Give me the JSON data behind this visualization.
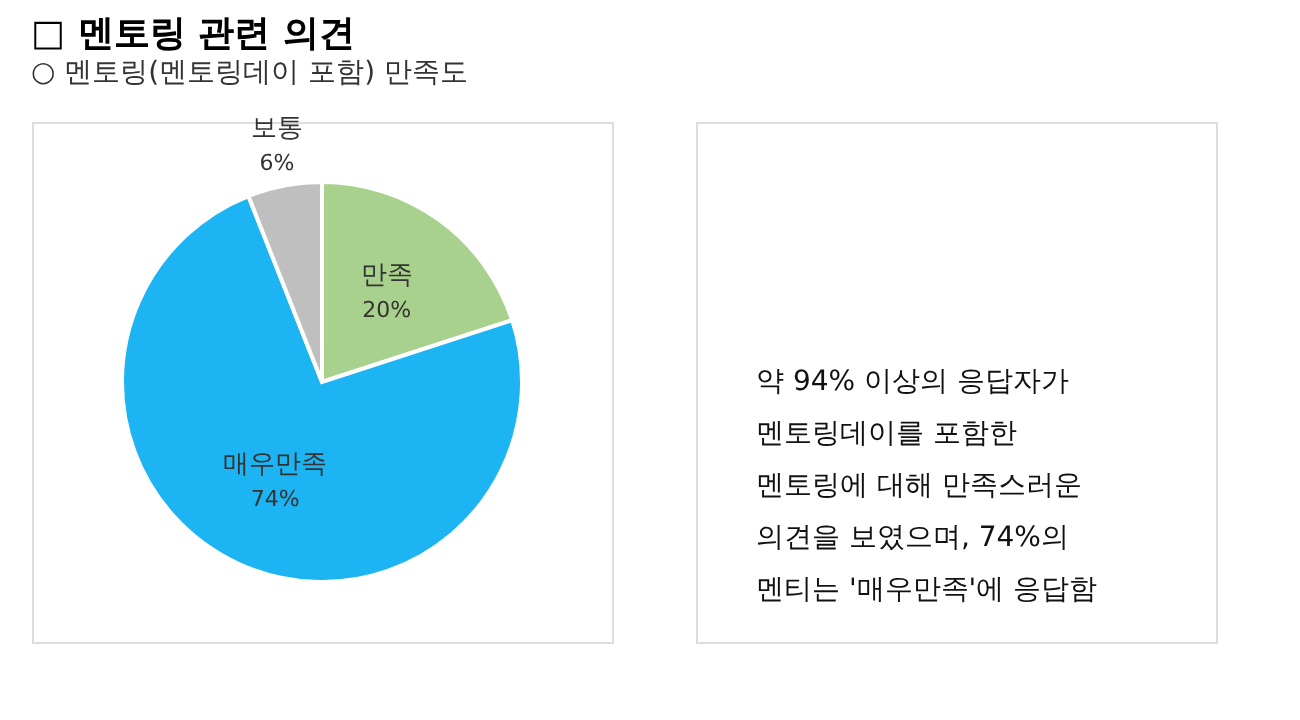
{
  "chart_data": {
    "type": "pie",
    "title": "□ 멘토링 관련 의견",
    "subtitle": "○ 멘토링(멘토링데이 포함) 만족도",
    "categories": [
      "만족",
      "매우만족",
      "보통"
    ],
    "values": [
      20,
      74,
      6
    ],
    "value_labels": [
      "20%",
      "74%",
      "6%"
    ],
    "colors": [
      "#a9d18e",
      "#1cb4f2",
      "#bfbfbf"
    ],
    "annotations": [
      "약 94% 이상의 응답자가\n멘토링데이를 포함한\n멘토링에 대해 만족스러운\n의견을 보였으며, 74%의\n멘티는 '매우만족'에 응답함"
    ]
  }
}
